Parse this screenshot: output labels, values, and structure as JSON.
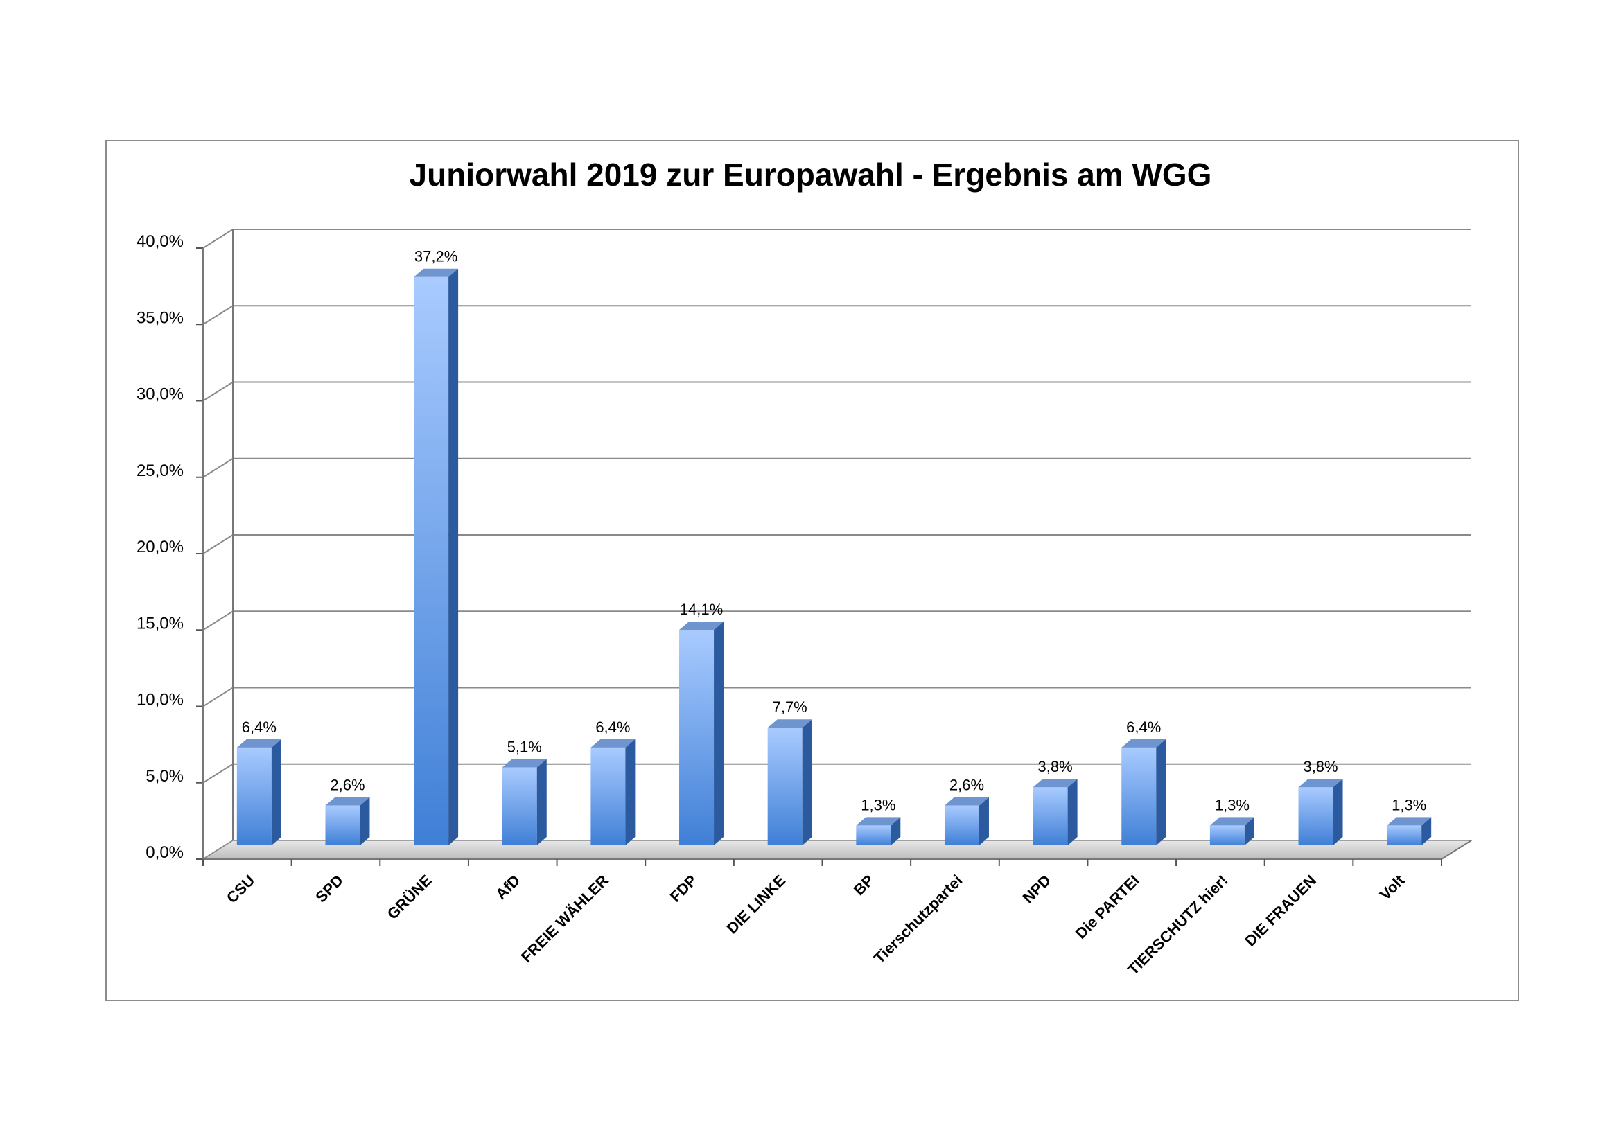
{
  "chart_data": {
    "type": "bar",
    "title": "Juniorwahl 2019 zur Europawahl - Ergebnis am WGG",
    "xlabel": "",
    "ylabel": "",
    "categories": [
      "CSU",
      "SPD",
      "GRÜNE",
      "AfD",
      "FREIE WÄHLER",
      "FDP",
      "DIE LINKE",
      "BP",
      "Tierschutzpartei",
      "NPD",
      "Die PARTEI",
      "TIERSCHUTZ hier!",
      "DIE FRAUEN",
      "Volt"
    ],
    "values": [
      6.4,
      2.6,
      37.2,
      5.1,
      6.4,
      14.1,
      7.7,
      1.3,
      2.6,
      3.8,
      6.4,
      1.3,
      3.8,
      1.3
    ],
    "data_labels": [
      "6,4%",
      "2,6%",
      "37,2%",
      "5,1%",
      "6,4%",
      "14,1%",
      "7,7%",
      "1,3%",
      "2,6%",
      "3,8%",
      "6,4%",
      "1,3%",
      "3,8%",
      "1,3%"
    ],
    "yticks": [
      "0,0%",
      "5,0%",
      "10,0%",
      "15,0%",
      "20,0%",
      "25,0%",
      "30,0%",
      "35,0%",
      "40,0%"
    ],
    "ylim": [
      0,
      40
    ],
    "grid": true,
    "style": "3d-column",
    "colors": {
      "bar_light": "#a9cbff",
      "bar_dark": "#3f7fd6",
      "bar_side": "#2c5a9e",
      "bar_top": "#6f95d0",
      "grid": "#8a8a8a",
      "floor": "#c8c8c8"
    }
  }
}
